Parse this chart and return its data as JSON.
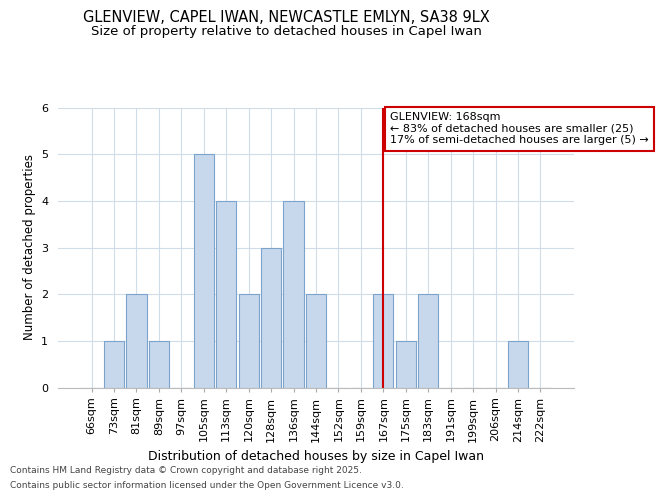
{
  "title1": "GLENVIEW, CAPEL IWAN, NEWCASTLE EMLYN, SA38 9LX",
  "title2": "Size of property relative to detached houses in Capel Iwan",
  "xlabel": "Distribution of detached houses by size in Capel Iwan",
  "ylabel": "Number of detached properties",
  "categories": [
    "66sqm",
    "73sqm",
    "81sqm",
    "89sqm",
    "97sqm",
    "105sqm",
    "113sqm",
    "120sqm",
    "128sqm",
    "136sqm",
    "144sqm",
    "152sqm",
    "159sqm",
    "167sqm",
    "175sqm",
    "183sqm",
    "191sqm",
    "199sqm",
    "206sqm",
    "214sqm",
    "222sqm"
  ],
  "values": [
    0,
    1,
    2,
    1,
    0,
    5,
    4,
    2,
    3,
    4,
    2,
    0,
    0,
    2,
    1,
    2,
    0,
    0,
    0,
    1,
    0
  ],
  "bar_color": "#c8d8ec",
  "bar_edge_color": "#7ba3cc",
  "ref_idx": 13,
  "ref_line_color": "#cc0000",
  "annotation_text": "GLENVIEW: 168sqm\n← 83% of detached houses are smaller (25)\n17% of semi-detached houses are larger (5) →",
  "annotation_box_facecolor": "#ffffff",
  "annotation_box_edgecolor": "#cc0000",
  "ylim": [
    0,
    6
  ],
  "yticks": [
    0,
    1,
    2,
    3,
    4,
    5,
    6
  ],
  "footer1": "Contains HM Land Registry data © Crown copyright and database right 2025.",
  "footer2": "Contains public sector information licensed under the Open Government Licence v3.0.",
  "bg_color": "#ffffff",
  "plot_bg_color": "#ffffff",
  "grid_color": "#d0dce8",
  "title1_fontsize": 10.5,
  "title2_fontsize": 9.5,
  "tick_fontsize": 8,
  "ylabel_fontsize": 8.5,
  "xlabel_fontsize": 9,
  "annot_fontsize": 8,
  "footer_fontsize": 6.5
}
